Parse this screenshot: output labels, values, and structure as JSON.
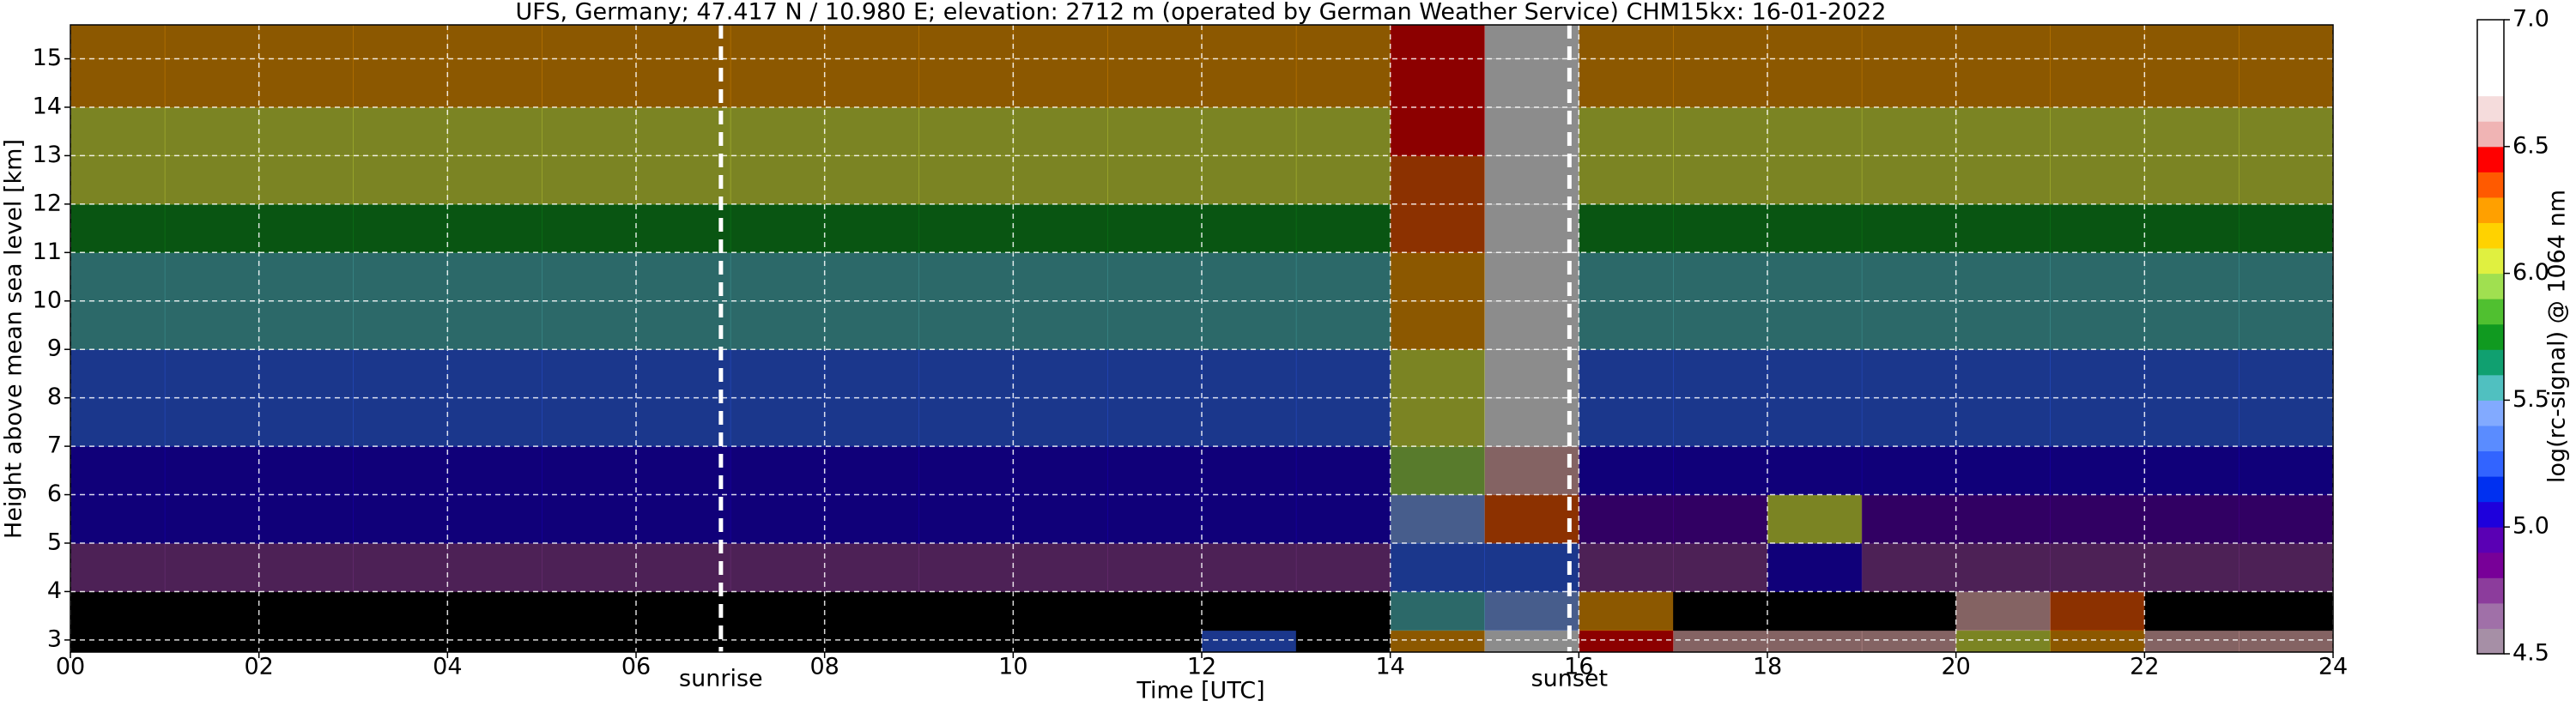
{
  "chart_data": {
    "type": "heatmap",
    "title": "UFS, Germany; 47.417 N / 10.980 E; elevation: 2712 m  (operated by German Weather Service)    CHM15kx: 16-01-2022",
    "xlabel": "Time [UTC]",
    "ylabel": "Height above mean sea level [km]",
    "xlim": [
      0,
      24
    ],
    "ylim": [
      2.75,
      15.7
    ],
    "xticks": [
      {
        "value": 0,
        "label": "00"
      },
      {
        "value": 2,
        "label": "02"
      },
      {
        "value": 4,
        "label": "04"
      },
      {
        "value": 6,
        "label": "06"
      },
      {
        "value": 8,
        "label": "08"
      },
      10,
      12,
      14,
      16,
      18,
      20,
      22,
      24
    ],
    "yticks": [
      3,
      4,
      5,
      6,
      7,
      8,
      9,
      10,
      11,
      12,
      13,
      14,
      15
    ],
    "grid": true,
    "x": [
      0,
      1,
      2,
      3,
      4,
      5,
      6,
      7,
      8,
      9,
      10,
      11,
      12,
      13,
      14,
      15,
      16,
      17,
      18,
      19,
      20,
      21,
      22,
      23,
      24
    ],
    "y": [
      2.75,
      3.2,
      4,
      5,
      6,
      7,
      8,
      9,
      10,
      11,
      12,
      13,
      14,
      15,
      15.7
    ],
    "z": [
      [
        4.3,
        4.3,
        4.3,
        4.3,
        4.3,
        4.3,
        4.3,
        4.3,
        4.3,
        4.3,
        4.3,
        4.3,
        5.2,
        4.4,
        6.2,
        6.8,
        6.4,
        6.6,
        6.6,
        6.6,
        6.0,
        6.2,
        6.6,
        6.6
      ],
      [
        4.3,
        4.3,
        4.3,
        4.3,
        4.3,
        4.3,
        4.3,
        4.3,
        4.3,
        4.3,
        4.3,
        4.3,
        4.3,
        4.3,
        5.6,
        5.4,
        6.2,
        4.3,
        4.3,
        4.3,
        6.5,
        6.3,
        4.3,
        4.3
      ],
      [
        4.8,
        4.8,
        4.8,
        4.8,
        4.8,
        4.8,
        4.8,
        4.8,
        4.8,
        4.8,
        4.8,
        4.8,
        4.8,
        4.8,
        5.2,
        5.3,
        4.7,
        4.7,
        5.0,
        4.7,
        4.7,
        4.7,
        4.7,
        4.7
      ],
      [
        5.0,
        5.0,
        5.0,
        5.0,
        5.0,
        5.0,
        5.0,
        5.0,
        5.0,
        5.0,
        5.0,
        5.0,
        5.0,
        5.0,
        5.4,
        6.3,
        4.9,
        4.9,
        6.0,
        4.9,
        4.9,
        4.9,
        4.9,
        4.9
      ],
      [
        5.1,
        5.1,
        5.1,
        5.1,
        5.1,
        5.1,
        5.1,
        5.1,
        5.1,
        5.1,
        5.1,
        5.1,
        5.1,
        5.1,
        5.9,
        6.6,
        5.1,
        5.1,
        5.1,
        5.1,
        5.1,
        5.1,
        5.1,
        5.1
      ],
      [
        5.2,
        5.2,
        5.2,
        5.2,
        5.2,
        5.2,
        5.2,
        5.2,
        5.2,
        5.2,
        5.2,
        5.2,
        5.2,
        5.2,
        6.0,
        6.7,
        5.2,
        5.2,
        5.2,
        5.2,
        5.2,
        5.2,
        5.2,
        5.2
      ],
      [
        5.3,
        5.3,
        5.3,
        5.3,
        5.3,
        5.3,
        5.3,
        5.3,
        5.3,
        5.3,
        5.3,
        5.3,
        5.3,
        5.3,
        6.1,
        6.7,
        5.3,
        5.3,
        5.3,
        5.3,
        5.3,
        5.3,
        5.3,
        5.3
      ],
      [
        5.5,
        5.5,
        5.5,
        5.5,
        5.5,
        5.5,
        5.5,
        5.5,
        5.5,
        5.5,
        5.5,
        5.5,
        5.5,
        5.5,
        6.2,
        6.8,
        5.5,
        5.5,
        5.5,
        5.5,
        5.5,
        5.5,
        5.5,
        5.5
      ],
      [
        5.6,
        5.6,
        5.6,
        5.6,
        5.6,
        5.6,
        5.6,
        5.6,
        5.6,
        5.6,
        5.6,
        5.6,
        5.6,
        5.6,
        6.2,
        6.8,
        5.6,
        5.6,
        5.6,
        5.6,
        5.6,
        5.6,
        5.6,
        5.6
      ],
      [
        5.8,
        5.8,
        5.8,
        5.8,
        5.8,
        5.8,
        5.8,
        5.8,
        5.8,
        5.8,
        5.8,
        5.8,
        5.8,
        5.8,
        6.3,
        6.8,
        5.8,
        5.8,
        5.8,
        5.8,
        5.8,
        5.8,
        5.8,
        5.8
      ],
      [
        6.0,
        6.0,
        6.0,
        6.0,
        6.0,
        6.0,
        6.0,
        6.0,
        6.0,
        6.0,
        6.0,
        6.0,
        6.0,
        6.0,
        6.3,
        6.8,
        6.0,
        6.0,
        6.0,
        6.0,
        6.0,
        6.0,
        6.0,
        6.0
      ],
      [
        6.1,
        6.1,
        6.1,
        6.1,
        6.1,
        6.1,
        6.1,
        6.1,
        6.1,
        6.1,
        6.1,
        6.1,
        6.1,
        6.1,
        6.4,
        6.8,
        6.1,
        6.1,
        6.1,
        6.1,
        6.1,
        6.1,
        6.1,
        6.1
      ],
      [
        6.2,
        6.2,
        6.2,
        6.2,
        6.2,
        6.2,
        6.2,
        6.2,
        6.2,
        6.2,
        6.2,
        6.2,
        6.2,
        6.2,
        6.4,
        6.8,
        6.2,
        6.2,
        6.2,
        6.2,
        6.2,
        6.2,
        6.2,
        6.2
      ],
      [
        6.2,
        6.2,
        6.2,
        6.2,
        6.2,
        6.2,
        6.2,
        6.2,
        6.2,
        6.2,
        6.2,
        6.2,
        6.2,
        6.2,
        6.4,
        6.8,
        6.2,
        6.2,
        6.2,
        6.2,
        6.2,
        6.2,
        6.2,
        6.2
      ]
    ],
    "annotations": [
      {
        "text": "sunrise",
        "x": 6.9
      },
      {
        "text": "sunset",
        "x": 15.9
      }
    ],
    "colorbar": {
      "label": "log(rc-signal) @ 1064 nm",
      "lim": [
        4.5,
        7.0
      ],
      "ticks": [
        4.5,
        {
          "value": 5,
          "label": "5.0"
        },
        5.5,
        {
          "value": 6,
          "label": "6.0"
        },
        6.5,
        {
          "value": 7,
          "label": "7.0"
        }
      ],
      "under_color": "#000000",
      "colors": [
        "#a68fa6",
        "#a070a8",
        "#8c3c9c",
        "#780098",
        "#5a00b4",
        "#1e00dc",
        "#0030f0",
        "#3264ff",
        "#5a8cff",
        "#82aaff",
        "#50c0c0",
        "#10a070",
        "#109a20",
        "#50c030",
        "#a0e050",
        "#e0f040",
        "#ffd200",
        "#ffa000",
        "#ff5a00",
        "#ff0000",
        "#f0b4b4",
        "#f5dcdc",
        "#ffffff",
        "#ffffff",
        "#ffffff"
      ]
    }
  }
}
